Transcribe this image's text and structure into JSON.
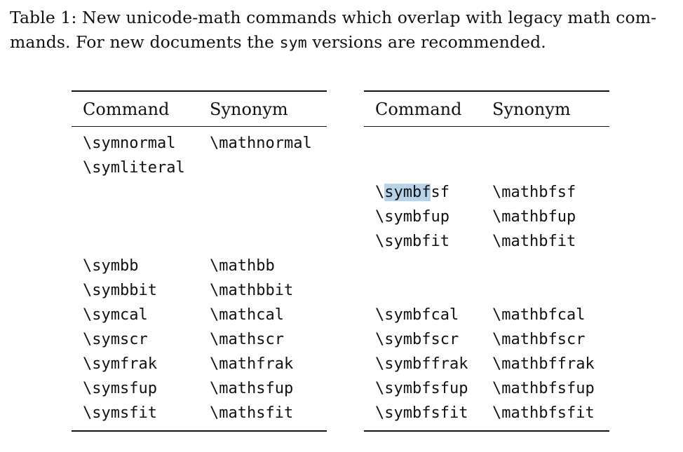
{
  "caption": {
    "line1": "Table 1: New unicode-math commands which overlap with legacy math com-",
    "line2_pre": "mands. For new documents the ",
    "line2_code": "sym",
    "line2_post": " versions are recommended."
  },
  "left_table": {
    "headers": [
      "Command",
      "Synonym"
    ],
    "rows": [
      {
        "slot": 0,
        "command": "\\symnormal",
        "synonym": "\\mathnormal"
      },
      {
        "slot": 1,
        "command": "\\symliteral",
        "synonym": ""
      },
      {
        "slot": 5,
        "command": "\\symbb",
        "synonym": "\\mathbb"
      },
      {
        "slot": 6,
        "command": "\\symbbit",
        "synonym": "\\mathbbit"
      },
      {
        "slot": 7,
        "command": "\\symcal",
        "synonym": "\\mathcal"
      },
      {
        "slot": 8,
        "command": "\\symscr",
        "synonym": "\\mathscr"
      },
      {
        "slot": 9,
        "command": "\\symfrak",
        "synonym": "\\mathfrak"
      },
      {
        "slot": 10,
        "command": "\\symsfup",
        "synonym": "\\mathsfup"
      },
      {
        "slot": 11,
        "command": "\\symsfit",
        "synonym": "\\mathsfit"
      }
    ]
  },
  "right_table": {
    "headers": [
      "Command",
      "Synonym"
    ],
    "rows": [
      {
        "slot": 2,
        "command": "\\symbfsf",
        "synonym": "\\mathbfsf",
        "highlight_prefix": "\\",
        "highlight_text": "symbf",
        "highlight_suffix": "sf"
      },
      {
        "slot": 3,
        "command": "\\symbfup",
        "synonym": "\\mathbfup"
      },
      {
        "slot": 4,
        "command": "\\symbfit",
        "synonym": "\\mathbfit"
      },
      {
        "slot": 7,
        "command": "\\symbfcal",
        "synonym": "\\mathbfcal"
      },
      {
        "slot": 8,
        "command": "\\symbfscr",
        "synonym": "\\mathbfscr"
      },
      {
        "slot": 9,
        "command": "\\symbffrak",
        "synonym": "\\mathbffrak"
      },
      {
        "slot": 10,
        "command": "\\symbfsfup",
        "synonym": "\\mathbfsfup"
      },
      {
        "slot": 11,
        "command": "\\symbfsfit",
        "synonym": "\\mathbfsfit"
      }
    ]
  }
}
